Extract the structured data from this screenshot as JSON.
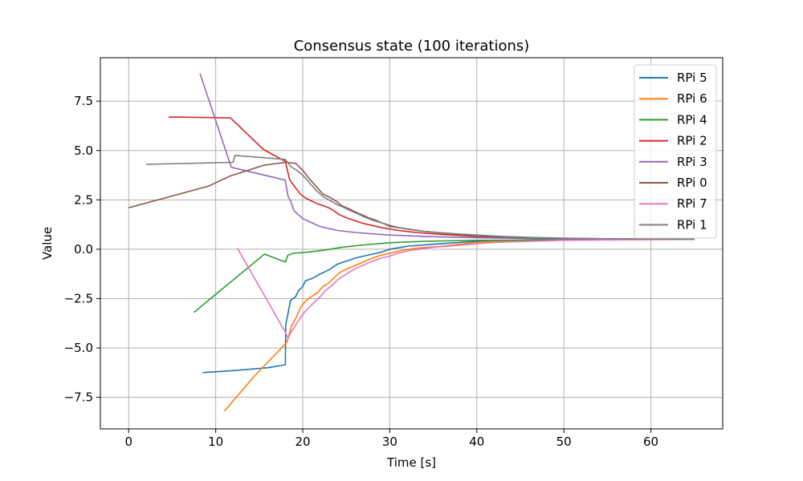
{
  "chart_data": {
    "type": "line",
    "title": "Consensus state (100 iterations)",
    "xlabel": "Time [s]",
    "ylabel": "Value",
    "xlim": [
      -3.25,
      68.25
    ],
    "ylim": [
      -9.1,
      9.7
    ],
    "xticks": [
      0,
      10,
      20,
      30,
      40,
      50,
      60
    ],
    "xtick_labels": [
      "0",
      "10",
      "20",
      "30",
      "40",
      "50",
      "60"
    ],
    "yticks": [
      -7.5,
      -5.0,
      -2.5,
      0.0,
      2.5,
      5.0,
      7.5
    ],
    "ytick_labels": [
      "−7.5",
      "−5.0",
      "−2.5",
      "0.0",
      "2.5",
      "5.0",
      "7.5"
    ],
    "grid": true,
    "legend_position": "top-right",
    "series": [
      {
        "name": "RPi 5",
        "color": "#1f77b4",
        "points": [
          [
            8.5,
            -6.25
          ],
          [
            12,
            -6.15
          ],
          [
            16,
            -6.0
          ],
          [
            18.0,
            -5.85
          ],
          [
            18.05,
            -3.8
          ],
          [
            18.2,
            -3.5
          ],
          [
            18.6,
            -2.6
          ],
          [
            19.2,
            -2.4
          ],
          [
            19.5,
            -2.1
          ],
          [
            20.0,
            -1.9
          ],
          [
            20.3,
            -1.6
          ],
          [
            21.0,
            -1.5
          ],
          [
            21.8,
            -1.3
          ],
          [
            23.0,
            -1.05
          ],
          [
            24.0,
            -0.75
          ],
          [
            25.0,
            -0.6
          ],
          [
            26.0,
            -0.45
          ],
          [
            27.0,
            -0.35
          ],
          [
            28.0,
            -0.25
          ],
          [
            29.0,
            -0.15
          ],
          [
            30.0,
            0.0
          ],
          [
            32.0,
            0.15
          ],
          [
            35.0,
            0.25
          ],
          [
            40.0,
            0.4
          ],
          [
            45.0,
            0.45
          ],
          [
            50.0,
            0.48
          ],
          [
            55.0,
            0.5
          ],
          [
            65.0,
            0.5
          ]
        ]
      },
      {
        "name": "RPi 6",
        "color": "#ff7f0e",
        "points": [
          [
            11.0,
            -8.2
          ],
          [
            14.5,
            -6.4
          ],
          [
            18.0,
            -4.8
          ],
          [
            18.2,
            -4.7
          ],
          [
            18.7,
            -3.9
          ],
          [
            19.2,
            -3.5
          ],
          [
            19.8,
            -2.9
          ],
          [
            20.4,
            -2.6
          ],
          [
            21.0,
            -2.4
          ],
          [
            21.7,
            -2.2
          ],
          [
            22.3,
            -1.9
          ],
          [
            23.0,
            -1.7
          ],
          [
            23.6,
            -1.45
          ],
          [
            24.2,
            -1.2
          ],
          [
            24.8,
            -1.05
          ],
          [
            25.6,
            -0.9
          ],
          [
            26.4,
            -0.75
          ],
          [
            27.2,
            -0.6
          ],
          [
            28.0,
            -0.45
          ],
          [
            29.0,
            -0.3
          ],
          [
            30.0,
            -0.2
          ],
          [
            31.5,
            -0.05
          ],
          [
            33.0,
            0.05
          ],
          [
            36.0,
            0.15
          ],
          [
            40.0,
            0.35
          ],
          [
            45.0,
            0.45
          ],
          [
            50.0,
            0.48
          ],
          [
            60.0,
            0.5
          ],
          [
            65.0,
            0.5
          ]
        ]
      },
      {
        "name": "RPi 4",
        "color": "#2ca02c",
        "points": [
          [
            7.5,
            -3.2
          ],
          [
            15.6,
            -0.25
          ],
          [
            18.0,
            -0.65
          ],
          [
            18.3,
            -0.3
          ],
          [
            19.0,
            -0.2
          ],
          [
            20.5,
            -0.15
          ],
          [
            22.5,
            -0.05
          ],
          [
            24.5,
            0.1
          ],
          [
            27.0,
            0.22
          ],
          [
            30.0,
            0.33
          ],
          [
            34.0,
            0.4
          ],
          [
            40.0,
            0.45
          ],
          [
            50.0,
            0.48
          ],
          [
            65.0,
            0.5
          ]
        ]
      },
      {
        "name": "RPi 2",
        "color": "#d62728",
        "points": [
          [
            4.6,
            6.7
          ],
          [
            11.7,
            6.65
          ],
          [
            15.5,
            5.05
          ],
          [
            18.0,
            4.45
          ],
          [
            18.5,
            3.5
          ],
          [
            19.2,
            3.1
          ],
          [
            19.7,
            2.8
          ],
          [
            20.3,
            2.6
          ],
          [
            21.0,
            2.45
          ],
          [
            21.7,
            2.3
          ],
          [
            22.4,
            2.2
          ],
          [
            23.0,
            2.1
          ],
          [
            23.6,
            1.95
          ],
          [
            24.2,
            1.75
          ],
          [
            25.0,
            1.6
          ],
          [
            26.0,
            1.45
          ],
          [
            27.0,
            1.3
          ],
          [
            28.0,
            1.2
          ],
          [
            29.0,
            1.1
          ],
          [
            31.0,
            0.95
          ],
          [
            33.0,
            0.85
          ],
          [
            36.0,
            0.75
          ],
          [
            40.0,
            0.65
          ],
          [
            45.0,
            0.58
          ],
          [
            50.0,
            0.54
          ],
          [
            65.0,
            0.5
          ]
        ]
      },
      {
        "name": "RPi 3",
        "color": "#9467bd",
        "points": [
          [
            8.2,
            8.9
          ],
          [
            11.8,
            4.15
          ],
          [
            18.0,
            3.5
          ],
          [
            18.3,
            2.7
          ],
          [
            18.6,
            2.45
          ],
          [
            19.0,
            1.95
          ],
          [
            20.0,
            1.55
          ],
          [
            21.0,
            1.35
          ],
          [
            22.0,
            1.15
          ],
          [
            23.0,
            1.05
          ],
          [
            24.0,
            0.95
          ],
          [
            26.0,
            0.85
          ],
          [
            28.0,
            0.78
          ],
          [
            30.0,
            0.72
          ],
          [
            34.0,
            0.65
          ],
          [
            40.0,
            0.58
          ],
          [
            50.0,
            0.52
          ],
          [
            65.0,
            0.5
          ]
        ]
      },
      {
        "name": "RPi 0",
        "color": "#8c564b",
        "points": [
          [
            0,
            2.1
          ],
          [
            9.2,
            3.2
          ],
          [
            11.6,
            3.7
          ],
          [
            15.5,
            4.25
          ],
          [
            18.0,
            4.4
          ],
          [
            19.2,
            4.35
          ],
          [
            20.0,
            4.0
          ],
          [
            20.7,
            3.6
          ],
          [
            21.5,
            3.2
          ],
          [
            22.3,
            2.8
          ],
          [
            23.0,
            2.65
          ],
          [
            23.8,
            2.45
          ],
          [
            24.5,
            2.2
          ],
          [
            25.3,
            2.05
          ],
          [
            26.0,
            1.9
          ],
          [
            26.8,
            1.75
          ],
          [
            27.5,
            1.6
          ],
          [
            28.2,
            1.5
          ],
          [
            29.0,
            1.35
          ],
          [
            30.0,
            1.2
          ],
          [
            31.0,
            1.1
          ],
          [
            32.5,
            1.0
          ],
          [
            34.0,
            0.9
          ],
          [
            36.0,
            0.82
          ],
          [
            38.0,
            0.75
          ],
          [
            40.0,
            0.68
          ],
          [
            43.0,
            0.62
          ],
          [
            46.0,
            0.58
          ],
          [
            50.0,
            0.55
          ],
          [
            55.0,
            0.52
          ],
          [
            65.0,
            0.5
          ]
        ]
      },
      {
        "name": "RPi 7",
        "color": "#e377c2",
        "points": [
          [
            12.5,
            0.05
          ],
          [
            18.0,
            -4.2
          ],
          [
            18.3,
            -4.5
          ],
          [
            18.8,
            -4.1
          ],
          [
            19.4,
            -3.7
          ],
          [
            20.0,
            -3.3
          ],
          [
            20.6,
            -3.0
          ],
          [
            21.3,
            -2.7
          ],
          [
            22.0,
            -2.4
          ],
          [
            22.6,
            -2.1
          ],
          [
            23.3,
            -1.85
          ],
          [
            24.0,
            -1.55
          ],
          [
            24.7,
            -1.35
          ],
          [
            25.4,
            -1.15
          ],
          [
            26.2,
            -0.95
          ],
          [
            27.0,
            -0.8
          ],
          [
            28.0,
            -0.6
          ],
          [
            29.0,
            -0.45
          ],
          [
            30.0,
            -0.35
          ],
          [
            31.0,
            -0.2
          ],
          [
            32.5,
            -0.05
          ],
          [
            35.0,
            0.1
          ],
          [
            38.0,
            0.2
          ],
          [
            42.0,
            0.35
          ],
          [
            50.0,
            0.45
          ],
          [
            65.0,
            0.5
          ]
        ]
      },
      {
        "name": "RPi 1",
        "color": "#7f7f7f",
        "points": [
          [
            2.0,
            4.3
          ],
          [
            12.0,
            4.4
          ],
          [
            12.2,
            4.75
          ],
          [
            18.0,
            4.55
          ],
          [
            18.6,
            4.2
          ],
          [
            19.3,
            4.0
          ],
          [
            20.0,
            3.75
          ],
          [
            20.8,
            3.35
          ],
          [
            21.6,
            2.95
          ],
          [
            22.4,
            2.65
          ],
          [
            23.2,
            2.45
          ],
          [
            24.0,
            2.25
          ],
          [
            24.8,
            2.1
          ],
          [
            25.5,
            1.95
          ],
          [
            26.3,
            1.8
          ],
          [
            27.0,
            1.65
          ],
          [
            27.8,
            1.5
          ],
          [
            28.5,
            1.4
          ],
          [
            29.3,
            1.3
          ],
          [
            30.0,
            1.15
          ],
          [
            31.5,
            1.05
          ],
          [
            33.0,
            0.95
          ],
          [
            35.0,
            0.87
          ],
          [
            37.0,
            0.8
          ],
          [
            40.0,
            0.72
          ],
          [
            43.0,
            0.65
          ],
          [
            46.0,
            0.6
          ],
          [
            50.0,
            0.56
          ],
          [
            55.0,
            0.53
          ],
          [
            65.0,
            0.5
          ]
        ]
      }
    ]
  }
}
